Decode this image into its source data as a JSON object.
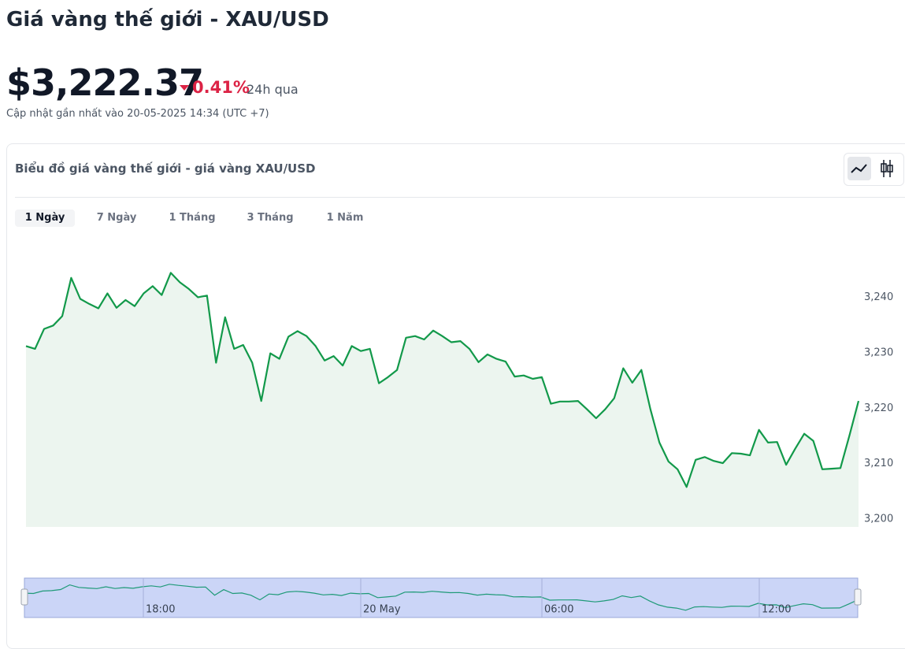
{
  "header": {
    "title": "Giá vàng thế giới - XAU/USD",
    "price": "$3,222.37",
    "change": "0.41%",
    "change_period": "24h qua",
    "updated": "Cập nhật gần nhất vào 20-05-2025 14:34 (UTC +7)"
  },
  "tabs": [
    "1 Ngày",
    "7 Ngày",
    "1 Tháng",
    "3 Tháng",
    "1 Năm"
  ],
  "chart_data": {
    "type": "area",
    "title": "Biểu đồ giá vàng thế giới - giá vàng XAU/USD",
    "values": [
      3231.2,
      3230.7,
      3234.3,
      3234.9,
      3236.6,
      3243.5,
      3239.7,
      3238.8,
      3238.0,
      3240.7,
      3238.1,
      3239.5,
      3238.4,
      3240.7,
      3242.0,
      3240.4,
      3244.4,
      3242.7,
      3241.5,
      3240.0,
      3240.3,
      3228.2,
      3236.4,
      3230.7,
      3231.4,
      3228.2,
      3221.3,
      3229.9,
      3228.9,
      3232.9,
      3233.9,
      3233.0,
      3231.2,
      3228.6,
      3229.4,
      3227.7,
      3231.2,
      3230.3,
      3230.7,
      3224.5,
      3225.6,
      3226.9,
      3232.7,
      3233.0,
      3232.4,
      3234.0,
      3233.0,
      3231.9,
      3232.1,
      3230.7,
      3228.3,
      3229.7,
      3228.9,
      3228.4,
      3225.7,
      3225.9,
      3225.3,
      3225.6,
      3220.8,
      3221.2,
      3221.2,
      3221.3,
      3219.8,
      3218.2,
      3219.8,
      3221.8,
      3227.2,
      3224.6,
      3226.9,
      3219.8,
      3213.8,
      3210.4,
      3209.0,
      3205.8,
      3210.7,
      3211.2,
      3210.5,
      3210.1,
      3211.9,
      3211.8,
      3211.5,
      3216.1,
      3213.8,
      3213.9,
      3209.8,
      3212.7,
      3215.4,
      3214.1,
      3209.0,
      3209.1,
      3209.2,
      3215.1,
      3221.3
    ],
    "color": "#12994a",
    "fill_color": "#ecf5ef",
    "ylim": [
      3198.6,
      3250
    ],
    "yticks": [
      {
        "value": 3200,
        "label": "3,200"
      },
      {
        "value": 3210,
        "label": "3,210"
      },
      {
        "value": 3220,
        "label": "3,220"
      },
      {
        "value": 3230,
        "label": "3,230"
      },
      {
        "value": 3240,
        "label": "3,240"
      }
    ],
    "navigator_labels": [
      "18:00",
      "20 May",
      "06:00",
      "12:00"
    ]
  }
}
